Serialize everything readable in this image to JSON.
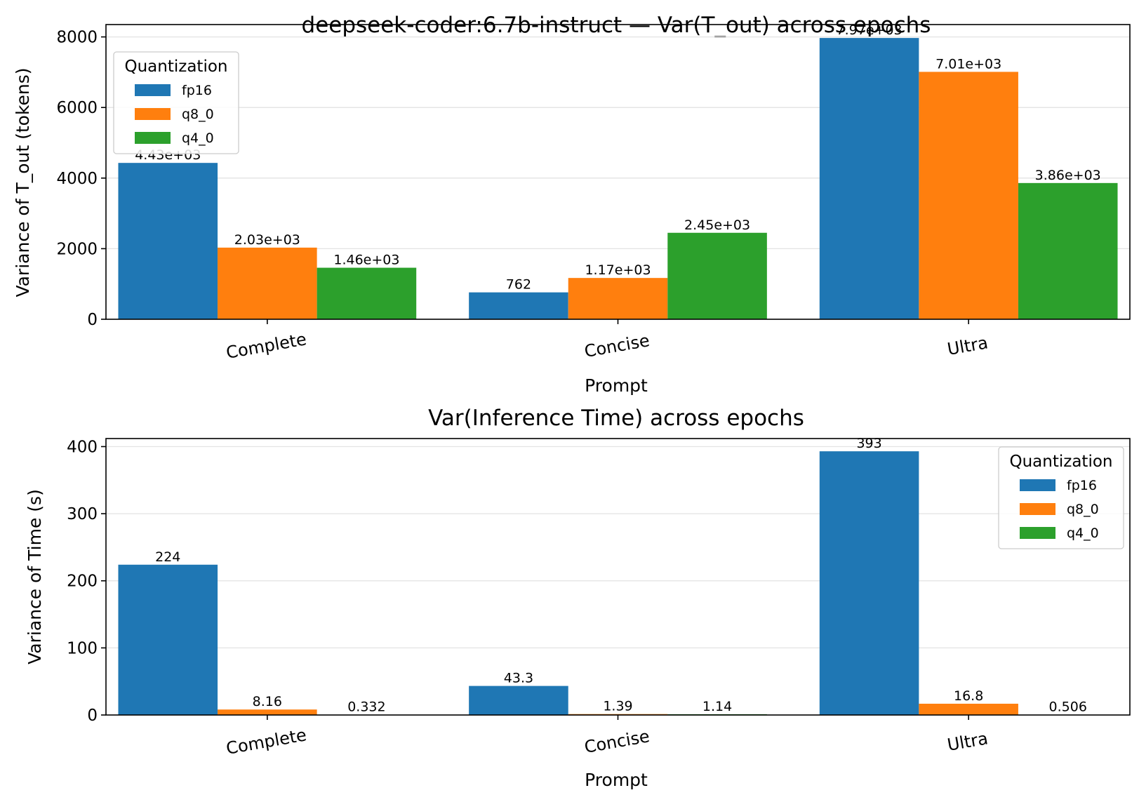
{
  "chart_data": [
    {
      "type": "bar",
      "title": "deepseek-coder:6.7b-instruct — Var(T_out) across epochs",
      "xlabel": "Prompt",
      "ylabel": "Variance of T_out (tokens)",
      "categories": [
        "Complete",
        "Concise",
        "Ultra"
      ],
      "ylim": [
        0,
        8350
      ],
      "yticks": [
        0,
        2000,
        4000,
        6000,
        8000
      ],
      "grid": "y",
      "legend": {
        "title": "Quantization",
        "placement": "top-left"
      },
      "series": [
        {
          "name": "fp16",
          "color": "#1f77b4",
          "values": [
            4430,
            762,
            7970
          ],
          "labels": [
            "4.43e+03",
            "762",
            "7.97e+03"
          ]
        },
        {
          "name": "q8_0",
          "color": "#ff7f0e",
          "values": [
            2030,
            1170,
            7010
          ],
          "labels": [
            "2.03e+03",
            "1.17e+03",
            "7.01e+03"
          ]
        },
        {
          "name": "q4_0",
          "color": "#2ca02c",
          "values": [
            1460,
            2450,
            3860
          ],
          "labels": [
            "1.46e+03",
            "2.45e+03",
            "3.86e+03"
          ]
        }
      ]
    },
    {
      "type": "bar",
      "title": "Var(Inference Time) across epochs",
      "xlabel": "Prompt",
      "ylabel": "Variance of Time (s)",
      "categories": [
        "Complete",
        "Concise",
        "Ultra"
      ],
      "ylim": [
        0,
        412
      ],
      "yticks": [
        0,
        100,
        200,
        300,
        400
      ],
      "grid": "y",
      "legend": {
        "title": "Quantization",
        "placement": "top-right"
      },
      "series": [
        {
          "name": "fp16",
          "color": "#1f77b4",
          "values": [
            224,
            43.3,
            393
          ],
          "labels": [
            "224",
            "43.3",
            "393"
          ]
        },
        {
          "name": "q8_0",
          "color": "#ff7f0e",
          "values": [
            8.16,
            1.39,
            16.8
          ],
          "labels": [
            "8.16",
            "1.39",
            "16.8"
          ]
        },
        {
          "name": "q4_0",
          "color": "#2ca02c",
          "values": [
            0.332,
            1.14,
            0.506
          ],
          "labels": [
            "0.332",
            "1.14",
            "0.506"
          ]
        }
      ]
    }
  ]
}
